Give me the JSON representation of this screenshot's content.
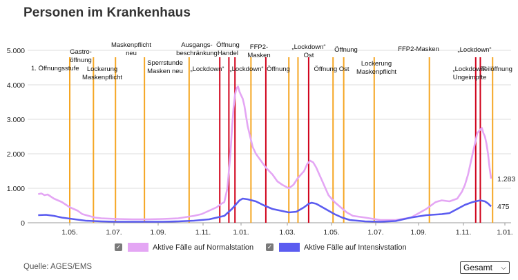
{
  "page": {
    "title": "Personen im Krankenhaus",
    "source": "Quelle: AGES/EMS"
  },
  "controls": {
    "range_select": "Gesamt",
    "range_chevron_icon": "chevron-down-icon"
  },
  "legend": [
    {
      "label": "Aktive Fälle auf Normalstation",
      "color": "#e4a6f4",
      "checked": true
    },
    {
      "label": "Aktive Fälle auf Intensivstation",
      "color": "#5b5cf0",
      "checked": true
    }
  ],
  "chart_data": {
    "type": "line",
    "title": "Personen im Krankenhaus",
    "xlabel": "",
    "ylabel": "",
    "x_ticks": [
      "1.05.",
      "1.07.",
      "1.09.",
      "1.11.",
      "1.01.",
      "1.03.",
      "1.05.",
      "1.07.",
      "1.09.",
      "1.11.",
      "1.01."
    ],
    "y_ticks": [
      "0",
      "1.000",
      "2.000",
      "3.000",
      "4.000",
      "5.000"
    ],
    "ylim": [
      0,
      5000
    ],
    "grid": "horizontal",
    "series": [
      {
        "name": "Aktive Fälle auf Normalstation",
        "color": "#e4a6f4",
        "points": [
          [
            40,
            830
          ],
          [
            42,
            850
          ],
          [
            44,
            800
          ],
          [
            46,
            820
          ],
          [
            50,
            700
          ],
          [
            55,
            600
          ],
          [
            60,
            450
          ],
          [
            65,
            350
          ],
          [
            68,
            250
          ],
          [
            72,
            200
          ],
          [
            76,
            150
          ],
          [
            80,
            130
          ],
          [
            90,
            110
          ],
          [
            100,
            100
          ],
          [
            110,
            100
          ],
          [
            120,
            110
          ],
          [
            130,
            130
          ],
          [
            140,
            200
          ],
          [
            145,
            250
          ],
          [
            150,
            350
          ],
          [
            155,
            450
          ],
          [
            158,
            550
          ],
          [
            160,
            600
          ],
          [
            161,
            800
          ],
          [
            162,
            1000
          ],
          [
            163,
            1500
          ],
          [
            164,
            2000
          ],
          [
            165,
            2700
          ],
          [
            166,
            3300
          ],
          [
            167,
            3700
          ],
          [
            168,
            3900
          ],
          [
            169,
            3950
          ],
          [
            170,
            3800
          ],
          [
            171,
            3700
          ],
          [
            172,
            3600
          ],
          [
            173,
            3400
          ],
          [
            174,
            3100
          ],
          [
            175,
            2800
          ],
          [
            176,
            2600
          ],
          [
            177,
            2400
          ],
          [
            178,
            2200
          ],
          [
            180,
            2000
          ],
          [
            183,
            1800
          ],
          [
            186,
            1600
          ],
          [
            190,
            1400
          ],
          [
            193,
            1200
          ],
          [
            196,
            1100
          ],
          [
            200,
            1000
          ],
          [
            203,
            1100
          ],
          [
            206,
            1300
          ],
          [
            210,
            1500
          ],
          [
            212,
            1700
          ],
          [
            214,
            1800
          ],
          [
            216,
            1750
          ],
          [
            218,
            1600
          ],
          [
            220,
            1400
          ],
          [
            222,
            1200
          ],
          [
            224,
            1000
          ],
          [
            226,
            800
          ],
          [
            230,
            600
          ],
          [
            234,
            450
          ],
          [
            238,
            300
          ],
          [
            242,
            200
          ],
          [
            250,
            150
          ],
          [
            260,
            80
          ],
          [
            270,
            80
          ],
          [
            280,
            150
          ],
          [
            290,
            400
          ],
          [
            296,
            600
          ],
          [
            300,
            650
          ],
          [
            305,
            620
          ],
          [
            310,
            700
          ],
          [
            313,
            900
          ],
          [
            315,
            1100
          ],
          [
            317,
            1400
          ],
          [
            319,
            1800
          ],
          [
            321,
            2200
          ],
          [
            323,
            2600
          ],
          [
            325,
            2700
          ],
          [
            326,
            2750
          ],
          [
            327,
            2600
          ],
          [
            328,
            2500
          ],
          [
            329,
            2300
          ],
          [
            330,
            2000
          ],
          [
            331,
            1600
          ],
          [
            332,
            1283
          ]
        ]
      },
      {
        "name": "Aktive Fälle auf Intensivstation",
        "color": "#5b5cf0",
        "points": [
          [
            40,
            220
          ],
          [
            45,
            230
          ],
          [
            50,
            200
          ],
          [
            55,
            150
          ],
          [
            60,
            120
          ],
          [
            65,
            90
          ],
          [
            70,
            60
          ],
          [
            80,
            40
          ],
          [
            90,
            30
          ],
          [
            100,
            30
          ],
          [
            110,
            30
          ],
          [
            120,
            30
          ],
          [
            130,
            40
          ],
          [
            140,
            60
          ],
          [
            145,
            80
          ],
          [
            150,
            100
          ],
          [
            155,
            150
          ],
          [
            160,
            200
          ],
          [
            165,
            400
          ],
          [
            168,
            550
          ],
          [
            170,
            650
          ],
          [
            172,
            700
          ],
          [
            175,
            680
          ],
          [
            180,
            620
          ],
          [
            185,
            500
          ],
          [
            190,
            400
          ],
          [
            195,
            350
          ],
          [
            200,
            300
          ],
          [
            205,
            320
          ],
          [
            210,
            450
          ],
          [
            213,
            550
          ],
          [
            215,
            580
          ],
          [
            218,
            550
          ],
          [
            222,
            450
          ],
          [
            226,
            350
          ],
          [
            230,
            250
          ],
          [
            235,
            150
          ],
          [
            240,
            80
          ],
          [
            245,
            60
          ],
          [
            250,
            40
          ],
          [
            260,
            30
          ],
          [
            270,
            50
          ],
          [
            280,
            150
          ],
          [
            290,
            220
          ],
          [
            300,
            250
          ],
          [
            305,
            280
          ],
          [
            310,
            400
          ],
          [
            315,
            520
          ],
          [
            320,
            600
          ],
          [
            325,
            650
          ],
          [
            328,
            620
          ],
          [
            330,
            560
          ],
          [
            332,
            475
          ]
        ]
      }
    ],
    "end_labels": [
      "1.283",
      "475"
    ],
    "annotations": [
      {
        "x": 60,
        "color": "#f5a623",
        "lines": [
          "1. Öffnungsstufe"
        ]
      },
      {
        "x": 75,
        "color": "#f5a623",
        "lines": [
          "Gastro-",
          "öffnung"
        ]
      },
      {
        "x": 89,
        "color": "#f5a623",
        "lines": [
          "Lockerung",
          "Maskenpflicht"
        ]
      },
      {
        "x": 108,
        "color": "#f5a623",
        "lines": [
          "Maskenpflicht",
          "neu"
        ]
      },
      {
        "x": 137,
        "color": "#f5a623",
        "lines": [
          "Sperrstunde",
          "Masken neu"
        ]
      },
      {
        "x": 157,
        "color": "#d0021b",
        "lines": [
          "Ausgangs-",
          "beschränkung"
        ]
      },
      {
        "x": 163,
        "color": "#d0021b",
        "lines": [
          "„Lockdown“"
        ]
      },
      {
        "x": 167,
        "color": "#d0021b",
        "lines": []
      },
      {
        "x": 177,
        "color": "#f5a623",
        "lines": [
          "Öffnung",
          "Handel"
        ]
      },
      {
        "x": 186,
        "color": "#d0021b",
        "lines": [
          "„Lockdown“"
        ]
      },
      {
        "x": 200,
        "color": "#f5a623",
        "lines": [
          "FFP2-",
          "Masken"
        ]
      },
      {
        "x": 206,
        "color": "#f5a623",
        "lines": [
          "Öffnung"
        ]
      },
      {
        "x": 213,
        "color": "#d0021b",
        "lines": [
          "„Lockdown“",
          "Ost"
        ]
      },
      {
        "x": 229,
        "color": "#f5a623",
        "lines": [
          "Öffnung Ost"
        ]
      },
      {
        "x": 236,
        "color": "#f5a623",
        "lines": [
          "Öffnung"
        ]
      },
      {
        "x": 256,
        "color": "#f5a623",
        "lines": [
          "Lockerung",
          "Maskenpflicht"
        ]
      },
      {
        "x": 292,
        "color": "#f5a623",
        "lines": [
          "FFP2-Masken"
        ]
      },
      {
        "x": 322,
        "color": "#d0021b",
        "lines": [
          "„Lockdown“",
          "Ungeimpfte"
        ]
      },
      {
        "x": 325,
        "color": "#d0021b",
        "lines": [
          "„Lockdown“"
        ]
      },
      {
        "x": 333,
        "color": "#f5a623",
        "lines": [
          "Teilöffnung"
        ]
      }
    ]
  }
}
